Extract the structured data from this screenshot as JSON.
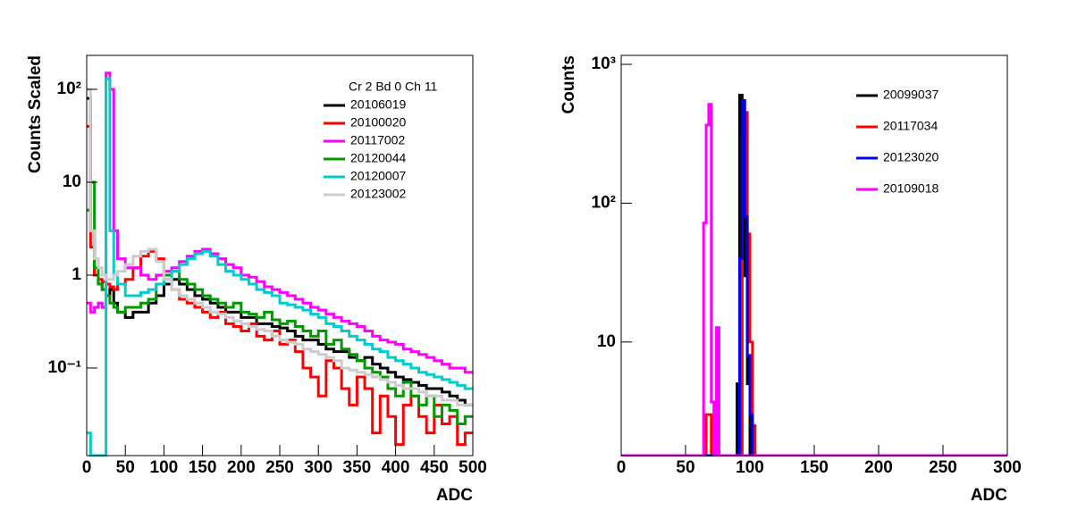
{
  "chart_data": [
    {
      "type": "histogram",
      "log_y": true,
      "ylabel": "Counts Scaled",
      "xlabel": "ADC",
      "legend_title": "Cr 2 Bd 0 Ch 11",
      "xlim": [
        0,
        500
      ],
      "xticks": [
        0,
        50,
        100,
        150,
        200,
        250,
        300,
        350,
        400,
        450,
        500
      ],
      "ylim": [
        0.0114,
        232
      ],
      "yticks": [
        {
          "value": 0.1,
          "label": "10⁻¹"
        },
        1,
        10,
        {
          "value": 100,
          "label": "10²"
        }
      ],
      "bins": [
        0,
        5,
        10,
        15,
        20,
        25,
        30,
        35,
        40,
        50,
        60,
        70,
        80,
        90,
        100,
        110,
        120,
        130,
        140,
        150,
        160,
        170,
        180,
        190,
        200,
        210,
        220,
        230,
        240,
        250,
        260,
        270,
        280,
        290,
        300,
        310,
        320,
        330,
        340,
        350,
        360,
        370,
        380,
        390,
        400,
        410,
        420,
        430,
        440,
        450,
        460,
        470,
        480,
        490,
        500
      ],
      "series": [
        {
          "name": "20106019",
          "color": "#000000",
          "values": [
            80,
            3,
            1,
            0.8,
            0.7,
            0.6,
            0.7,
            0.5,
            0.4,
            0.35,
            0.4,
            0.4,
            0.5,
            0.6,
            0.8,
            0.9,
            0.8,
            0.7,
            0.6,
            0.55,
            0.5,
            0.45,
            0.4,
            0.4,
            0.35,
            0.35,
            0.3,
            0.3,
            0.28,
            0.27,
            0.25,
            0.22,
            0.2,
            0.2,
            0.18,
            0.16,
            0.15,
            0.15,
            0.13,
            0.12,
            0.13,
            0.11,
            0.1,
            0.09,
            0.08,
            0.075,
            0.07,
            0.065,
            0.06,
            0.06,
            0.055,
            0.05,
            0.045,
            0.04
          ]
        },
        {
          "name": "20100020",
          "color": "#ff0000",
          "values": [
            40,
            2,
            1,
            0.9,
            0.85,
            0.8,
            0.75,
            0.7,
            0.8,
            0.9,
            1.2,
            1.6,
            1.8,
            1.5,
            1.0,
            0.7,
            0.55,
            0.5,
            0.45,
            0.4,
            0.35,
            0.4,
            0.3,
            0.28,
            0.25,
            0.3,
            0.22,
            0.2,
            0.25,
            0.18,
            0.2,
            0.15,
            0.1,
            0.08,
            0.05,
            0.12,
            0.1,
            0.06,
            0.04,
            0.08,
            0.06,
            0.02,
            0.05,
            0.03,
            0.015,
            0.04,
            0.05,
            0.03,
            0.02,
            0.04,
            0.025,
            0.03,
            0.015,
            0.02
          ]
        },
        {
          "name": "20117002",
          "color": "#ff00ff",
          "values": [
            0.5,
            0.4,
            0.45,
            0.5,
            0.45,
            150,
            100,
            3,
            1.5,
            1.2,
            1.2,
            1.0,
            0.9,
            1.0,
            1.1,
            1.2,
            1.4,
            1.6,
            1.8,
            1.9,
            1.7,
            1.5,
            1.3,
            1.2,
            1.0,
            0.95,
            0.85,
            0.75,
            0.7,
            0.65,
            0.6,
            0.55,
            0.5,
            0.45,
            0.42,
            0.38,
            0.35,
            0.32,
            0.3,
            0.28,
            0.25,
            0.22,
            0.2,
            0.19,
            0.18,
            0.16,
            0.15,
            0.14,
            0.13,
            0.12,
            0.11,
            0.1,
            0.1,
            0.09
          ]
        },
        {
          "name": "20120044",
          "color": "#009900",
          "values": [
            5,
            10,
            1.2,
            0.8,
            0.7,
            0.6,
            0.5,
            0.45,
            0.4,
            0.45,
            0.45,
            0.5,
            0.55,
            0.8,
            1.0,
            1.1,
            0.9,
            0.8,
            0.7,
            0.6,
            0.55,
            0.5,
            0.45,
            0.5,
            0.4,
            0.38,
            0.35,
            0.4,
            0.33,
            0.3,
            0.32,
            0.28,
            0.25,
            0.22,
            0.25,
            0.18,
            0.2,
            0.16,
            0.14,
            0.12,
            0.1,
            0.09,
            0.08,
            0.06,
            0.05,
            0.07,
            0.05,
            0.04,
            0.05,
            0.03,
            0.04,
            0.035,
            0.025,
            0.03
          ]
        },
        {
          "name": "20120007",
          "color": "#00cccc",
          "values": [
            0.02,
            0,
            0,
            0,
            0,
            130,
            3,
            1.0,
            0.8,
            0.6,
            0.6,
            0.65,
            0.7,
            0.8,
            0.9,
            1.1,
            1.3,
            1.5,
            1.7,
            1.8,
            1.6,
            1.3,
            1.1,
            1.0,
            0.9,
            0.8,
            0.7,
            0.65,
            0.6,
            0.5,
            0.48,
            0.45,
            0.42,
            0.38,
            0.35,
            0.3,
            0.28,
            0.25,
            0.22,
            0.2,
            0.18,
            0.16,
            0.15,
            0.13,
            0.12,
            0.11,
            0.1,
            0.09,
            0.085,
            0.08,
            0.075,
            0.07,
            0.065,
            0.06
          ]
        },
        {
          "name": "20123002",
          "color": "#cccccc",
          "values": [
            100,
            3,
            1.5,
            1.2,
            1.0,
            0.9,
            0.9,
            1.0,
            1.1,
            1.3,
            1.6,
            1.8,
            1.9,
            1.4,
            0.9,
            0.7,
            0.6,
            0.55,
            0.5,
            0.45,
            0.4,
            0.38,
            0.35,
            0.32,
            0.3,
            0.28,
            0.26,
            0.25,
            0.22,
            0.2,
            0.19,
            0.18,
            0.16,
            0.15,
            0.14,
            0.13,
            0.12,
            0.1,
            0.095,
            0.09,
            0.085,
            0.08,
            0.075,
            0.07,
            0.065,
            0.06,
            0.06,
            0.055,
            0.05,
            0.05,
            0.045,
            0.045,
            0.04,
            0.04
          ]
        }
      ]
    },
    {
      "type": "histogram",
      "log_y": true,
      "ylabel": "Counts",
      "xlabel": "ADC",
      "xlim": [
        0,
        300
      ],
      "xticks": [
        0,
        50,
        100,
        150,
        200,
        250,
        300
      ],
      "ylim": [
        1.52,
        1160
      ],
      "yticks": [
        10,
        {
          "value": 100,
          "label": "10²"
        },
        {
          "value": 1000,
          "label": "10³"
        }
      ],
      "bins": [
        0,
        62,
        64,
        66,
        68,
        70,
        72,
        74,
        76,
        78,
        80,
        82,
        84,
        86,
        88,
        90,
        92,
        94,
        96,
        98,
        100,
        102,
        104,
        106,
        300
      ],
      "series": [
        {
          "name": "20099037",
          "color": "#000000",
          "values": [
            0,
            0,
            0,
            0,
            0,
            0,
            0,
            0,
            0,
            0,
            0,
            0,
            0,
            0,
            0,
            5,
            600,
            120,
            30,
            5,
            0,
            0,
            0,
            0
          ]
        },
        {
          "name": "20117034",
          "color": "#ff0000",
          "values": [
            0,
            0,
            0,
            3,
            3,
            0,
            0,
            0,
            0,
            0,
            0,
            0,
            0,
            0,
            0,
            0,
            0,
            300,
            450,
            60,
            10,
            2.5,
            0,
            0
          ]
        },
        {
          "name": "20123020",
          "color": "#0000ee",
          "values": [
            0,
            0,
            0,
            0,
            0,
            0,
            0,
            0,
            0,
            0,
            0,
            0,
            0,
            0,
            0,
            0,
            40,
            550,
            80,
            8,
            3,
            0,
            0,
            0
          ]
        },
        {
          "name": "20109018",
          "color": "#ff00ff",
          "values": [
            0,
            0,
            72,
            365,
            515,
            3.7,
            0,
            12.7,
            0,
            0,
            0,
            0,
            0,
            0,
            0,
            0,
            0,
            0,
            0,
            0,
            0,
            0,
            0,
            0
          ]
        }
      ]
    }
  ]
}
